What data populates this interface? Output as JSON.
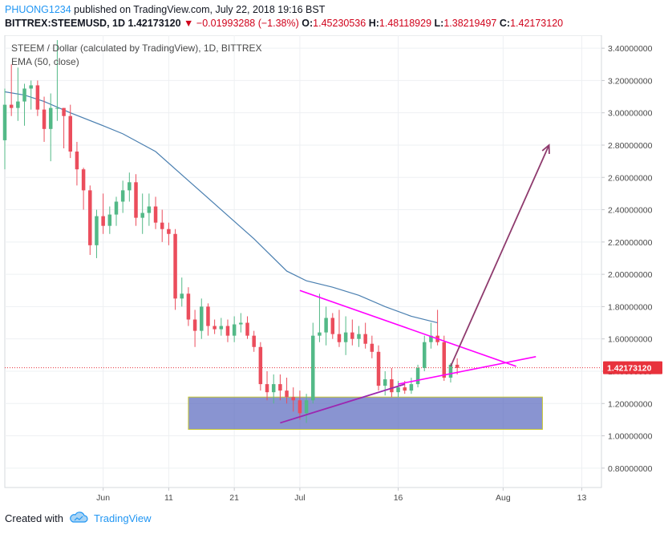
{
  "header": {
    "author": "PHUONG1234",
    "published": "published on TradingView.com, July 22, 2018 19:16 BST",
    "symbol": "BITTREX:STEEMUSD,",
    "symbol_value": "1D",
    "last": "1.42173120",
    "change": "−0.01993288 (−1.38%)",
    "o_label": "O:",
    "o_value": "1.45230536",
    "h_label": "H:",
    "h_value": "1.48118929",
    "l_label": "L:",
    "l_value": "1.38219497",
    "c_label": "C:",
    "c_value": "1.42173120"
  },
  "footer": {
    "created_with": "Created with",
    "brand": "TradingView"
  },
  "colors": {
    "up": "#53b987",
    "down": "#eb4d5c",
    "ema": "#4a7fb0",
    "triangle": "#ff00ff",
    "support_line": "#9c27b0",
    "arrow": "#8e3a6d",
    "zone_fill": "#5c6bbf",
    "zone_border": "#c8c830",
    "price_label": "#e8323c"
  },
  "chart_data": {
    "type": "candlestick",
    "title": "STEEM / Dollar (calculated by TradingView), 1D, BITTREX",
    "indicator_label": "EMA (50, close)",
    "ylim": [
      0.68,
      3.48
    ],
    "y_ticks": [
      "3.40000000",
      "3.20000000",
      "3.00000000",
      "2.80000000",
      "2.60000000",
      "2.40000000",
      "2.20000000",
      "2.00000000",
      "1.80000000",
      "1.60000000",
      "1.40000000",
      "1.20000000",
      "1.00000000",
      "0.80000000"
    ],
    "y_tick_values": [
      3.4,
      3.2,
      3.0,
      2.8,
      2.6,
      2.4,
      2.2,
      2.0,
      1.8,
      1.6,
      1.4,
      1.2,
      1.0,
      0.8
    ],
    "x_ticks": [
      {
        "label": "Jun",
        "day": 32
      },
      {
        "label": "11",
        "day": 42
      },
      {
        "label": "21",
        "day": 52
      },
      {
        "label": "Jul",
        "day": 62
      },
      {
        "label": "16",
        "day": 77
      },
      {
        "label": "Aug",
        "day": 93
      },
      {
        "label": "13",
        "day": 105
      }
    ],
    "x_range_days": [
      17,
      108
    ],
    "last_price": "1.42173120",
    "last_price_value": 1.4217,
    "candles": [
      {
        "o": 2.83,
        "h": 3.15,
        "l": 2.65,
        "c": 3.05
      },
      {
        "o": 3.05,
        "h": 3.3,
        "l": 2.98,
        "c": 3.03
      },
      {
        "o": 3.03,
        "h": 3.28,
        "l": 2.95,
        "c": 3.07
      },
      {
        "o": 3.07,
        "h": 3.18,
        "l": 2.92,
        "c": 3.15
      },
      {
        "o": 3.15,
        "h": 3.2,
        "l": 3.02,
        "c": 3.17
      },
      {
        "o": 3.17,
        "h": 3.2,
        "l": 2.98,
        "c": 3.02
      },
      {
        "o": 3.02,
        "h": 3.1,
        "l": 2.82,
        "c": 2.9
      },
      {
        "o": 2.9,
        "h": 3.12,
        "l": 2.7,
        "c": 3.03
      },
      {
        "o": 3.03,
        "h": 3.45,
        "l": 2.95,
        "c": 3.03
      },
      {
        "o": 3.03,
        "h": 3.03,
        "l": 2.78,
        "c": 2.98
      },
      {
        "o": 2.98,
        "h": 3.05,
        "l": 2.72,
        "c": 2.76
      },
      {
        "o": 2.76,
        "h": 2.82,
        "l": 2.55,
        "c": 2.65
      },
      {
        "o": 2.65,
        "h": 2.66,
        "l": 2.4,
        "c": 2.52
      },
      {
        "o": 2.52,
        "h": 2.55,
        "l": 2.12,
        "c": 2.18
      },
      {
        "o": 2.18,
        "h": 2.4,
        "l": 2.1,
        "c": 2.36
      },
      {
        "o": 2.36,
        "h": 2.5,
        "l": 2.25,
        "c": 2.3
      },
      {
        "o": 2.3,
        "h": 2.42,
        "l": 2.25,
        "c": 2.37
      },
      {
        "o": 2.37,
        "h": 2.48,
        "l": 2.3,
        "c": 2.45
      },
      {
        "o": 2.45,
        "h": 2.58,
        "l": 2.38,
        "c": 2.52
      },
      {
        "o": 2.52,
        "h": 2.63,
        "l": 2.45,
        "c": 2.57
      },
      {
        "o": 2.57,
        "h": 2.62,
        "l": 2.3,
        "c": 2.35
      },
      {
        "o": 2.35,
        "h": 2.5,
        "l": 2.25,
        "c": 2.38
      },
      {
        "o": 2.38,
        "h": 2.5,
        "l": 2.3,
        "c": 2.42
      },
      {
        "o": 2.42,
        "h": 2.48,
        "l": 2.28,
        "c": 2.32
      },
      {
        "o": 2.32,
        "h": 2.4,
        "l": 2.2,
        "c": 2.28
      },
      {
        "o": 2.28,
        "h": 2.32,
        "l": 2.18,
        "c": 2.25
      },
      {
        "o": 2.25,
        "h": 2.28,
        "l": 1.78,
        "c": 1.85
      },
      {
        "o": 1.85,
        "h": 1.98,
        "l": 1.8,
        "c": 1.88
      },
      {
        "o": 1.88,
        "h": 1.92,
        "l": 1.68,
        "c": 1.72
      },
      {
        "o": 1.72,
        "h": 1.78,
        "l": 1.55,
        "c": 1.65
      },
      {
        "o": 1.65,
        "h": 1.85,
        "l": 1.6,
        "c": 1.8
      },
      {
        "o": 1.8,
        "h": 1.82,
        "l": 1.62,
        "c": 1.68
      },
      {
        "o": 1.68,
        "h": 1.72,
        "l": 1.63,
        "c": 1.66
      },
      {
        "o": 1.66,
        "h": 1.73,
        "l": 1.62,
        "c": 1.68
      },
      {
        "o": 1.68,
        "h": 1.72,
        "l": 1.58,
        "c": 1.62
      },
      {
        "o": 1.62,
        "h": 1.74,
        "l": 1.58,
        "c": 1.69
      },
      {
        "o": 1.69,
        "h": 1.76,
        "l": 1.64,
        "c": 1.7
      },
      {
        "o": 1.7,
        "h": 1.74,
        "l": 1.6,
        "c": 1.62
      },
      {
        "o": 1.62,
        "h": 1.65,
        "l": 1.52,
        "c": 1.55
      },
      {
        "o": 1.55,
        "h": 1.58,
        "l": 1.28,
        "c": 1.32
      },
      {
        "o": 1.32,
        "h": 1.4,
        "l": 1.22,
        "c": 1.27
      },
      {
        "o": 1.27,
        "h": 1.38,
        "l": 1.2,
        "c": 1.32
      },
      {
        "o": 1.32,
        "h": 1.38,
        "l": 1.22,
        "c": 1.28
      },
      {
        "o": 1.28,
        "h": 1.36,
        "l": 1.2,
        "c": 1.24
      },
      {
        "o": 1.24,
        "h": 1.3,
        "l": 1.15,
        "c": 1.22
      },
      {
        "o": 1.22,
        "h": 1.28,
        "l": 1.1,
        "c": 1.14
      },
      {
        "o": 1.14,
        "h": 1.26,
        "l": 1.08,
        "c": 1.22
      },
      {
        "o": 1.22,
        "h": 1.7,
        "l": 1.2,
        "c": 1.62
      },
      {
        "o": 1.62,
        "h": 1.88,
        "l": 1.58,
        "c": 1.64
      },
      {
        "o": 1.64,
        "h": 1.8,
        "l": 1.56,
        "c": 1.73
      },
      {
        "o": 1.73,
        "h": 1.76,
        "l": 1.6,
        "c": 1.63
      },
      {
        "o": 1.63,
        "h": 1.78,
        "l": 1.55,
        "c": 1.58
      },
      {
        "o": 1.58,
        "h": 1.74,
        "l": 1.5,
        "c": 1.64
      },
      {
        "o": 1.64,
        "h": 1.72,
        "l": 1.56,
        "c": 1.6
      },
      {
        "o": 1.6,
        "h": 1.68,
        "l": 1.55,
        "c": 1.63
      },
      {
        "o": 1.63,
        "h": 1.7,
        "l": 1.54,
        "c": 1.57
      },
      {
        "o": 1.57,
        "h": 1.62,
        "l": 1.48,
        "c": 1.52
      },
      {
        "o": 1.52,
        "h": 1.56,
        "l": 1.28,
        "c": 1.31
      },
      {
        "o": 1.31,
        "h": 1.4,
        "l": 1.25,
        "c": 1.35
      },
      {
        "o": 1.35,
        "h": 1.42,
        "l": 1.24,
        "c": 1.27
      },
      {
        "o": 1.27,
        "h": 1.34,
        "l": 1.24,
        "c": 1.3
      },
      {
        "o": 1.3,
        "h": 1.34,
        "l": 1.26,
        "c": 1.28
      },
      {
        "o": 1.28,
        "h": 1.36,
        "l": 1.26,
        "c": 1.32
      },
      {
        "o": 1.32,
        "h": 1.44,
        "l": 1.3,
        "c": 1.42
      },
      {
        "o": 1.42,
        "h": 1.62,
        "l": 1.4,
        "c": 1.58
      },
      {
        "o": 1.58,
        "h": 1.7,
        "l": 1.54,
        "c": 1.62
      },
      {
        "o": 1.62,
        "h": 1.78,
        "l": 1.56,
        "c": 1.58
      },
      {
        "o": 1.58,
        "h": 1.62,
        "l": 1.34,
        "c": 1.36
      },
      {
        "o": 1.36,
        "h": 1.45,
        "l": 1.33,
        "c": 1.44
      },
      {
        "o": 1.44,
        "h": 1.48,
        "l": 1.38,
        "c": 1.42
      }
    ],
    "ema": [
      {
        "day": 17,
        "v": 3.13
      },
      {
        "day": 20,
        "v": 3.11
      },
      {
        "day": 23,
        "v": 3.07
      },
      {
        "day": 27,
        "v": 3.0
      },
      {
        "day": 32,
        "v": 2.92
      },
      {
        "day": 35,
        "v": 2.87
      },
      {
        "day": 40,
        "v": 2.76
      },
      {
        "day": 45,
        "v": 2.58
      },
      {
        "day": 50,
        "v": 2.4
      },
      {
        "day": 55,
        "v": 2.22
      },
      {
        "day": 60,
        "v": 2.02
      },
      {
        "day": 63,
        "v": 1.96
      },
      {
        "day": 67,
        "v": 1.92
      },
      {
        "day": 71,
        "v": 1.87
      },
      {
        "day": 75,
        "v": 1.8
      },
      {
        "day": 79,
        "v": 1.74
      },
      {
        "day": 83,
        "v": 1.7
      }
    ],
    "annotations": {
      "triangle_upper": [
        {
          "day": 62,
          "v": 1.9
        },
        {
          "day": 95,
          "v": 1.43
        }
      ],
      "triangle_lower": [
        {
          "day": 77,
          "v": 1.32
        },
        {
          "day": 98,
          "v": 1.49
        }
      ],
      "support_line": [
        {
          "day": 59,
          "v": 1.08
        },
        {
          "day": 78,
          "v": 1.32
        }
      ],
      "forecast_arrow": [
        {
          "day": 85,
          "v": 1.43
        },
        {
          "day": 100,
          "v": 2.8
        }
      ],
      "support_zone": {
        "day_from": 45,
        "day_to": 99,
        "v_from": 1.04,
        "v_to": 1.24
      }
    }
  }
}
